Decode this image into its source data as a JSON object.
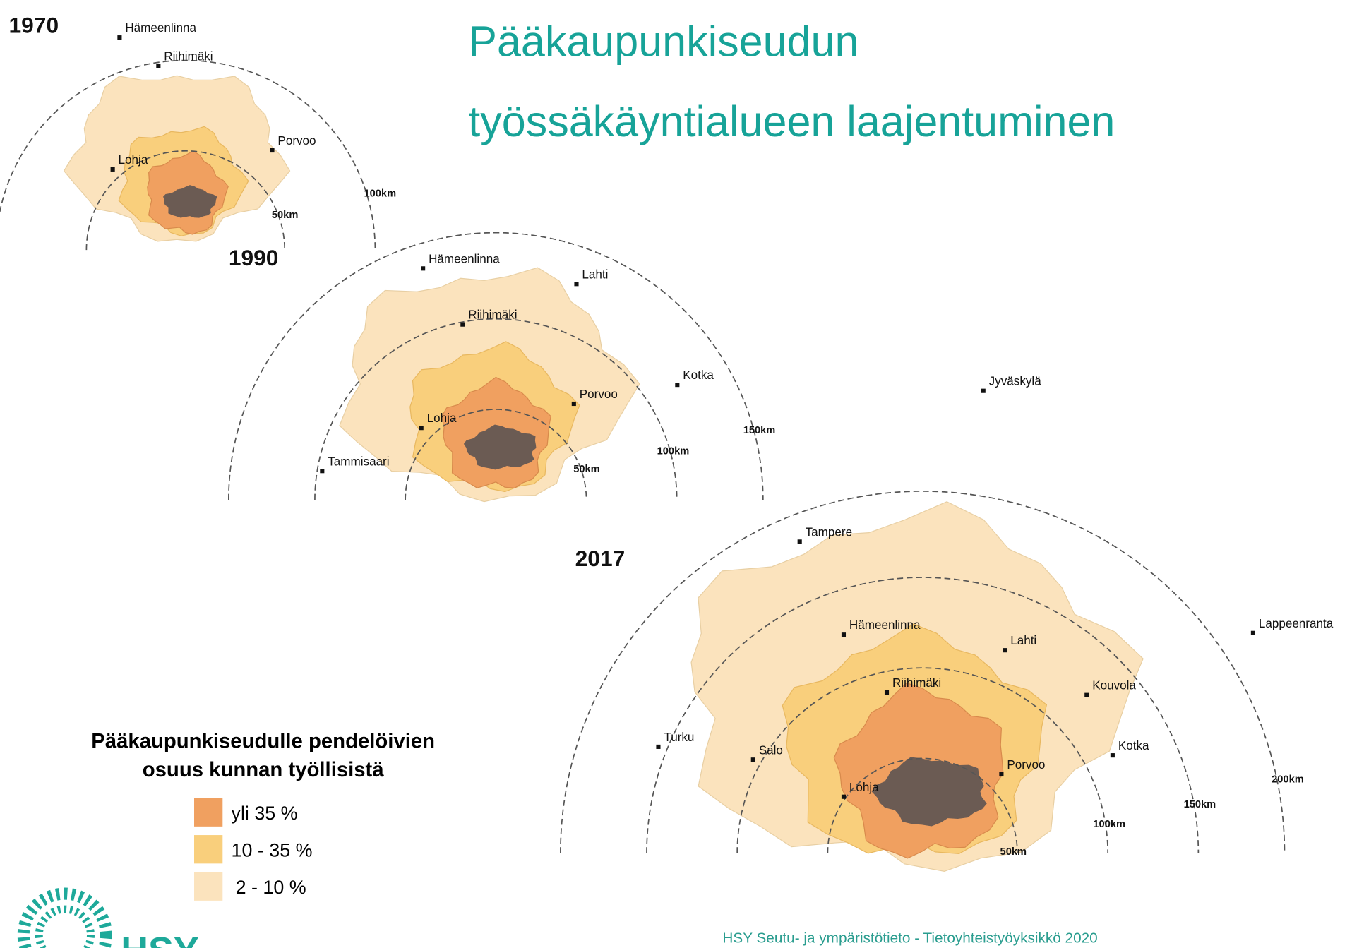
{
  "title": [
    "Pääkaupunkiseudun",
    "työssäkäyntialueen laajentuminen"
  ],
  "maps": [
    {
      "year": "1970",
      "places": [
        "Hämeenlinna",
        "Riihimäki",
        "Porvoo",
        "Lohja"
      ],
      "rings": [
        "50km",
        "100km"
      ]
    },
    {
      "year": "1990",
      "places": [
        "Hämeenlinna",
        "Lahti",
        "Riihimäki",
        "Kotka",
        "Porvoo",
        "Lohja",
        "Tammisaari"
      ],
      "rings": [
        "50km",
        "100km",
        "150km"
      ]
    },
    {
      "year": "2017",
      "places": [
        "Jyväskylä",
        "Tampere",
        "Hämeenlinna",
        "Lahti",
        "Lappeenranta",
        "Riihimäki",
        "Kouvola",
        "Turku",
        "Salo",
        "Kotka",
        "Porvoo",
        "Lohja"
      ],
      "rings": [
        "50km",
        "100km",
        "150km",
        "200km"
      ]
    }
  ],
  "legend": {
    "title": [
      "Pääkaupunkiseudulle pendelöivien",
      "osuus kunnan työllisistä"
    ],
    "items": [
      {
        "label": "yli 35 %",
        "color": "#f0a060"
      },
      {
        "label": "10 - 35 %",
        "color": "#f9cf7c"
      },
      {
        "label": "2 - 10 %",
        "color": "#fbe3bd"
      }
    ]
  },
  "footer": "HSY Seutu- ja ympäristötieto - Tietoyhteistyöyksikkö 2020",
  "logo": "HSY"
}
